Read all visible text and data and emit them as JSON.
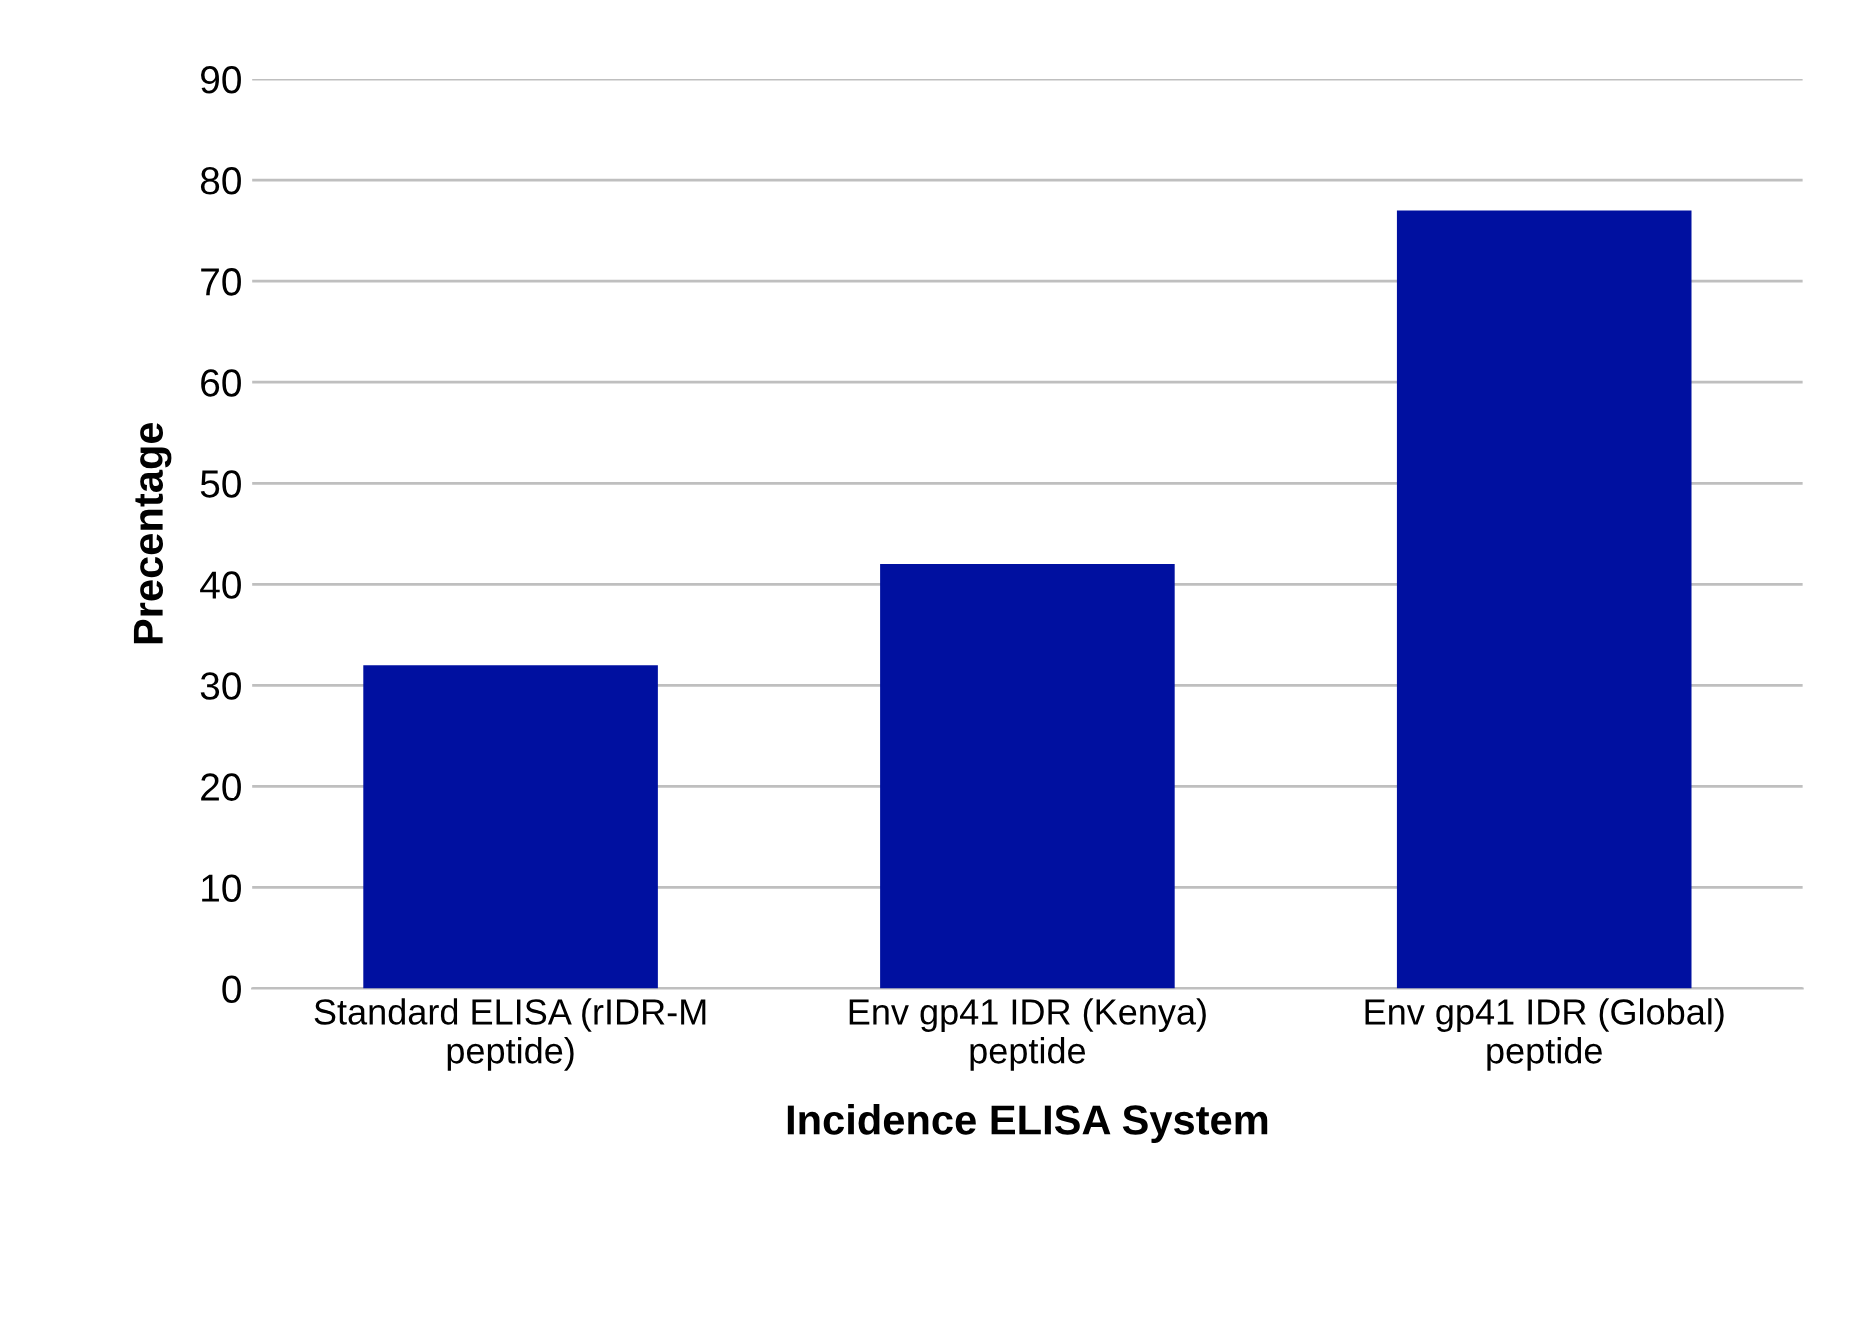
{
  "chart_data": {
    "type": "bar",
    "xlabel": "Incidence ELISA System",
    "ylabel": "Precentage",
    "categories": [
      "Standard ELISA (rIDR-M\npeptide)",
      "Env gp41 IDR (Kenya)\npeptide",
      "Env gp41 IDR (Global)\npeptide"
    ],
    "values": [
      32,
      42,
      77
    ],
    "color": "#0010a0",
    "ylim": [
      0,
      90
    ],
    "yticks": [
      0,
      10,
      20,
      30,
      40,
      50,
      60,
      70,
      80,
      90
    ],
    "grid": "y",
    "legend": false
  }
}
